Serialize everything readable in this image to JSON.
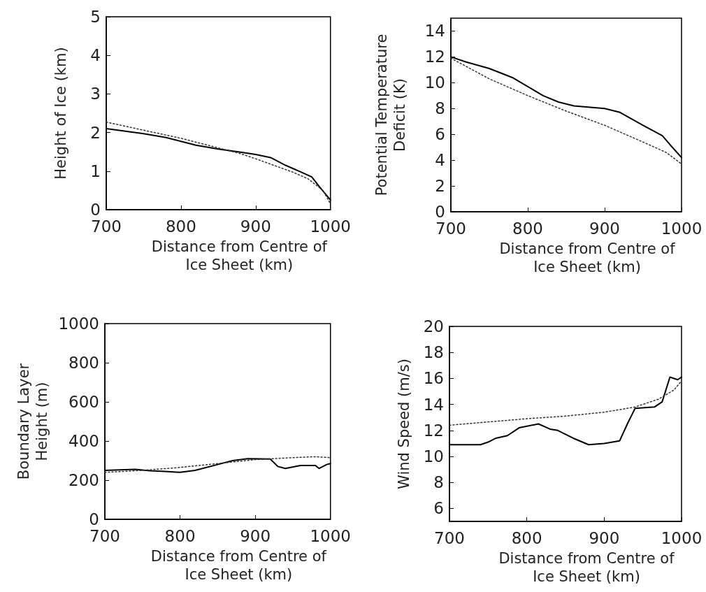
{
  "chart_data": [
    {
      "type": "line",
      "xlabel": "Distance from Centre of\nIce Sheet (km)",
      "ylabel": "Height of Ice (km)",
      "xlim": [
        700,
        1000
      ],
      "xticks": [
        700,
        800,
        900,
        1000
      ],
      "ylim": [
        0,
        5
      ],
      "yticks": [
        0,
        1,
        2,
        3,
        4,
        5
      ],
      "grid": false,
      "marker": "none",
      "series": [
        {
          "color": "#000000",
          "line_style": "solid",
          "x": [
            700,
            750,
            780,
            800,
            820,
            850,
            880,
            900,
            920,
            940,
            960,
            975,
            985,
            1000
          ],
          "values": [
            2.1,
            1.97,
            1.87,
            1.77,
            1.67,
            1.57,
            1.49,
            1.43,
            1.35,
            1.15,
            0.98,
            0.85,
            0.6,
            0.25
          ]
        },
        {
          "color": "#333333",
          "line_style": "dotted",
          "x": [
            700,
            750,
            800,
            850,
            880,
            900,
            920,
            950,
            970,
            990,
            1000
          ],
          "values": [
            2.27,
            2.06,
            1.85,
            1.6,
            1.45,
            1.32,
            1.18,
            0.97,
            0.8,
            0.5,
            0.15
          ]
        }
      ]
    },
    {
      "type": "line",
      "xlabel": "Distance from Centre of\nIce Sheet (km)",
      "ylabel": "Potential Temperature\nDeficit (K)",
      "xlim": [
        700,
        1000
      ],
      "xticks": [
        700,
        800,
        900,
        1000
      ],
      "ylim": [
        0,
        15
      ],
      "yticks": [
        0,
        2,
        4,
        6,
        8,
        10,
        12,
        14
      ],
      "grid": false,
      "marker": "none",
      "series": [
        {
          "color": "#000000",
          "line_style": "solid",
          "x": [
            700,
            720,
            750,
            780,
            800,
            820,
            840,
            860,
            900,
            920,
            950,
            975,
            985,
            1000
          ],
          "values": [
            12.0,
            11.6,
            11.1,
            10.4,
            9.7,
            9.0,
            8.5,
            8.2,
            8.0,
            7.7,
            6.7,
            5.9,
            5.2,
            4.2
          ]
        },
        {
          "color": "#333333",
          "line_style": "dotted",
          "x": [
            700,
            750,
            800,
            850,
            900,
            950,
            980,
            1000
          ],
          "values": [
            11.9,
            10.3,
            9.0,
            7.8,
            6.7,
            5.4,
            4.6,
            3.7
          ]
        }
      ]
    },
    {
      "type": "line",
      "xlabel": "Distance from Centre of\nIce Sheet (km)",
      "ylabel": "Boundary Layer\nHeight (m)",
      "xlim": [
        700,
        1000
      ],
      "xticks": [
        700,
        800,
        900,
        1000
      ],
      "ylim": [
        0,
        1000
      ],
      "yticks": [
        0,
        200,
        400,
        600,
        800,
        1000
      ],
      "grid": false,
      "marker": "none",
      "series": [
        {
          "color": "#000000",
          "line_style": "solid",
          "x": [
            700,
            740,
            760,
            780,
            800,
            820,
            850,
            870,
            890,
            920,
            930,
            940,
            960,
            980,
            985,
            995,
            1000
          ],
          "values": [
            250,
            255,
            248,
            245,
            240,
            250,
            280,
            300,
            310,
            308,
            270,
            260,
            275,
            275,
            260,
            280,
            285
          ]
        },
        {
          "color": "#333333",
          "line_style": "dotted",
          "x": [
            700,
            750,
            800,
            850,
            900,
            950,
            980,
            1000
          ],
          "values": [
            240,
            250,
            265,
            285,
            305,
            315,
            320,
            315
          ]
        }
      ]
    },
    {
      "type": "line",
      "xlabel": "Distance from Centre of\nIce Sheet (km)",
      "ylabel": "Wind Speed (m/s)",
      "xlim": [
        700,
        1000
      ],
      "xticks": [
        700,
        800,
        900,
        1000
      ],
      "ylim": [
        5,
        20
      ],
      "yticks": [
        6,
        8,
        10,
        12,
        14,
        16,
        18,
        20
      ],
      "grid": false,
      "marker": "none",
      "series": [
        {
          "color": "#000000",
          "line_style": "solid",
          "x": [
            700,
            740,
            750,
            760,
            775,
            790,
            815,
            830,
            840,
            860,
            880,
            900,
            920,
            930,
            940,
            965,
            975,
            985,
            995,
            1000
          ],
          "values": [
            10.9,
            10.9,
            11.1,
            11.4,
            11.6,
            12.2,
            12.5,
            12.1,
            12.0,
            11.4,
            10.9,
            11.0,
            11.2,
            12.5,
            13.7,
            13.8,
            14.2,
            16.1,
            15.9,
            16.1
          ]
        },
        {
          "color": "#333333",
          "line_style": "dotted",
          "x": [
            700,
            800,
            850,
            900,
            940,
            970,
            990,
            1000
          ],
          "values": [
            12.4,
            12.9,
            13.1,
            13.4,
            13.8,
            14.4,
            15.1,
            15.8
          ]
        }
      ]
    }
  ]
}
